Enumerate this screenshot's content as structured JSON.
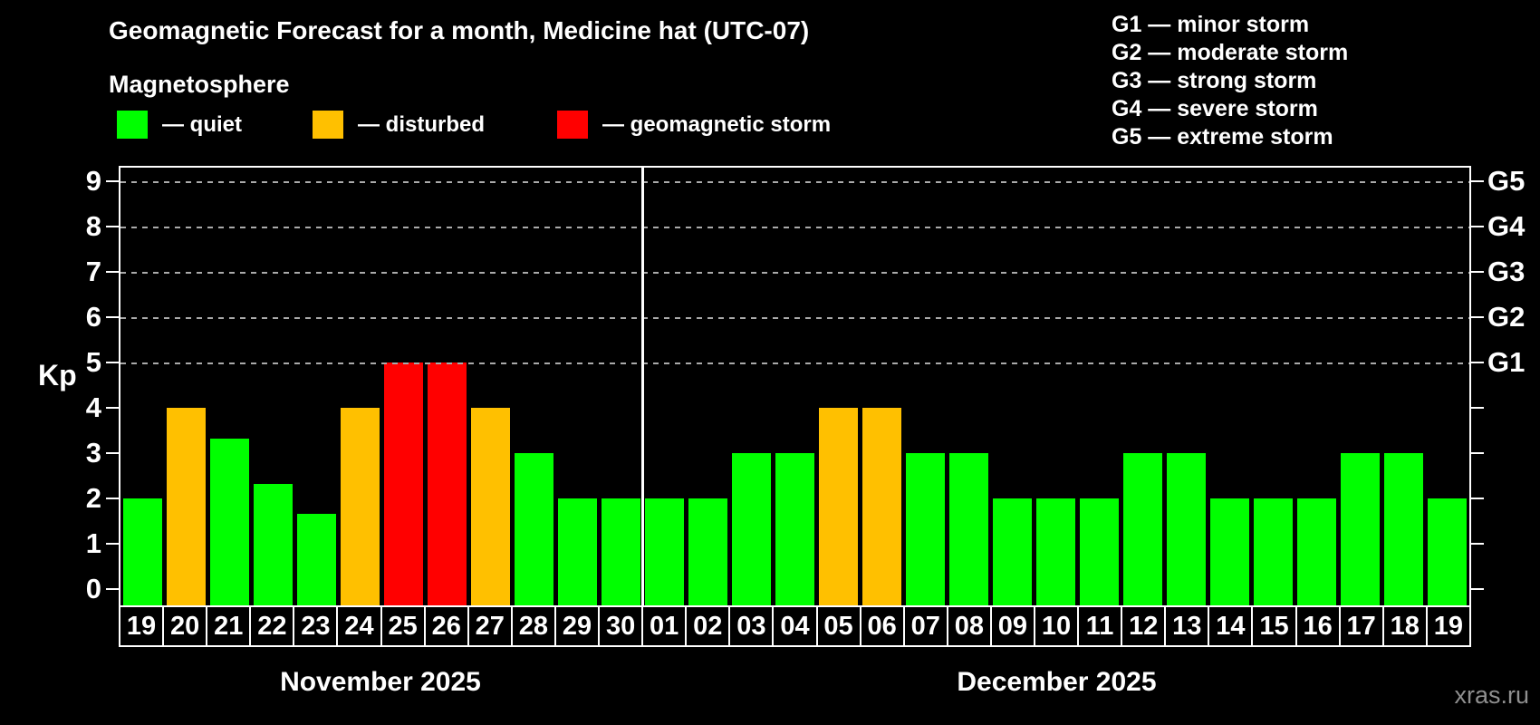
{
  "title": "Geomagnetic Forecast for a month, Medicine hat (UTC-07)",
  "subtitle": "Magnetosphere",
  "kp_legend": [
    {
      "key": "quiet",
      "label": "— quiet",
      "color": "#00ff00"
    },
    {
      "key": "disturbed",
      "label": "— disturbed",
      "color": "#ffc000"
    },
    {
      "key": "storm",
      "label": "— geomagnetic storm",
      "color": "#ff0000"
    }
  ],
  "g_legend": [
    "G1 — minor storm",
    "G2 — moderate storm",
    "G3 — strong storm",
    "G4 — severe storm",
    "G5 — extreme storm"
  ],
  "watermark": "xras.ru",
  "chart_data": {
    "type": "bar",
    "title": "Geomagnetic Forecast for a month, Medicine hat (UTC-07)",
    "ylabel": "Kp",
    "ylim": [
      0,
      9.3
    ],
    "y_ticks": [
      0,
      1,
      2,
      3,
      4,
      5,
      6,
      7,
      8,
      9
    ],
    "gridlines_at_kp": [
      5,
      6,
      7,
      8,
      9
    ],
    "grid_style": "dashed gray horizontal",
    "right_axis": [
      {
        "label": "G1",
        "kp": 5
      },
      {
        "label": "G2",
        "kp": 6
      },
      {
        "label": "G3",
        "kp": 7
      },
      {
        "label": "G4",
        "kp": 8
      },
      {
        "label": "G5",
        "kp": 9
      }
    ],
    "months": [
      {
        "label": "November 2025",
        "days": 12
      },
      {
        "label": "December 2025",
        "days": 19
      }
    ],
    "categories": [
      "19",
      "20",
      "21",
      "22",
      "23",
      "24",
      "25",
      "26",
      "27",
      "28",
      "29",
      "30",
      "01",
      "02",
      "03",
      "04",
      "05",
      "06",
      "07",
      "08",
      "09",
      "10",
      "11",
      "12",
      "13",
      "14",
      "15",
      "16",
      "17",
      "18",
      "19"
    ],
    "values": [
      2,
      4,
      3.33,
      2.33,
      1.67,
      4,
      5,
      5,
      4,
      3,
      2,
      2,
      2,
      2,
      3,
      3,
      4,
      4,
      3,
      3,
      2,
      2,
      2,
      3,
      3,
      2,
      2,
      2,
      3,
      3,
      2
    ],
    "statuses": [
      "quiet",
      "disturbed",
      "quiet",
      "quiet",
      "quiet",
      "disturbed",
      "storm",
      "storm",
      "disturbed",
      "quiet",
      "quiet",
      "quiet",
      "quiet",
      "quiet",
      "quiet",
      "quiet",
      "disturbed",
      "disturbed",
      "quiet",
      "quiet",
      "quiet",
      "quiet",
      "quiet",
      "quiet",
      "quiet",
      "quiet",
      "quiet",
      "quiet",
      "quiet",
      "quiet",
      "quiet"
    ]
  }
}
